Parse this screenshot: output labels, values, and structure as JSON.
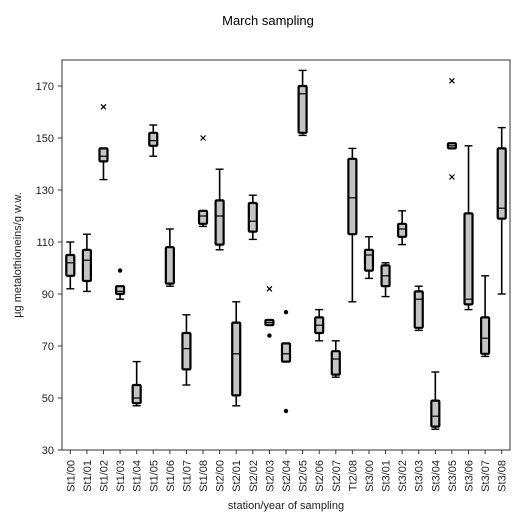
{
  "chart_data": {
    "type": "boxplot",
    "title": "March sampling",
    "xlabel": "station/year of sampling",
    "ylabel": "µg metalothioneins/g w.w.",
    "ylim": [
      30,
      180
    ],
    "yticks": [
      30,
      50,
      70,
      90,
      110,
      130,
      150,
      170
    ],
    "grid": false,
    "categories": [
      "St1/00",
      "St1/01",
      "St1/02",
      "St1/03",
      "St1/04",
      "St1/05",
      "St1/06",
      "St1/07",
      "St1/08",
      "St2/00",
      "St2/01",
      "St2/02",
      "St2/03",
      "St2/04",
      "St2/05",
      "St2/06",
      "St2/07",
      "Tt2/08",
      "St3/00",
      "St3/01",
      "St3/02",
      "St3/03",
      "St3/04",
      "St3/05",
      "St3/06",
      "St3/07",
      "St3/08"
    ],
    "boxes": [
      {
        "min": 92,
        "q1": 97,
        "median": 102,
        "q3": 105,
        "max": 110,
        "outliers": []
      },
      {
        "min": 91,
        "q1": 95,
        "median": 103,
        "q3": 107,
        "max": 113,
        "outliers": []
      },
      {
        "min": 134,
        "q1": 141,
        "median": 143,
        "q3": 146,
        "max": 146,
        "outliers": [
          {
            "value": 162,
            "marker": "x"
          }
        ]
      },
      {
        "min": 88,
        "q1": 90,
        "median": 91,
        "q3": 93,
        "max": 93,
        "outliers": [
          {
            "value": 99,
            "marker": "dot"
          }
        ]
      },
      {
        "min": 47,
        "q1": 48,
        "median": 50,
        "q3": 55,
        "max": 64,
        "outliers": []
      },
      {
        "min": 143,
        "q1": 147,
        "median": 149,
        "q3": 152,
        "max": 155,
        "outliers": []
      },
      {
        "min": 93,
        "q1": 94,
        "median": 94,
        "q3": 108,
        "max": 115,
        "outliers": []
      },
      {
        "min": 55,
        "q1": 61,
        "median": 69,
        "q3": 75,
        "max": 82,
        "outliers": []
      },
      {
        "min": 116,
        "q1": 117,
        "median": 120,
        "q3": 122,
        "max": 122,
        "outliers": [
          {
            "value": 150,
            "marker": "x"
          }
        ]
      },
      {
        "min": 107,
        "q1": 109,
        "median": 120,
        "q3": 126,
        "max": 138,
        "outliers": []
      },
      {
        "min": 47,
        "q1": 51,
        "median": 67,
        "q3": 79,
        "max": 87,
        "outliers": []
      },
      {
        "min": 111,
        "q1": 114,
        "median": 118,
        "q3": 125,
        "max": 128,
        "outliers": []
      },
      {
        "min": 78,
        "q1": 78,
        "median": 79,
        "q3": 80,
        "max": 80,
        "outliers": [
          {
            "value": 92,
            "marker": "x"
          },
          {
            "value": 74,
            "marker": "dot"
          }
        ]
      },
      {
        "min": 64,
        "q1": 64,
        "median": 67,
        "q3": 71,
        "max": 71,
        "outliers": [
          {
            "value": 83,
            "marker": "dot"
          },
          {
            "value": 45,
            "marker": "dot"
          }
        ]
      },
      {
        "min": 151,
        "q1": 152,
        "median": 167,
        "q3": 170,
        "max": 176,
        "outliers": []
      },
      {
        "min": 72,
        "q1": 75,
        "median": 78,
        "q3": 81,
        "max": 84,
        "outliers": []
      },
      {
        "min": 58,
        "q1": 59,
        "median": 65,
        "q3": 68,
        "max": 72,
        "outliers": []
      },
      {
        "min": 87,
        "q1": 113,
        "median": 127,
        "q3": 142,
        "max": 146,
        "outliers": []
      },
      {
        "min": 96,
        "q1": 99,
        "median": 105,
        "q3": 107,
        "max": 112,
        "outliers": []
      },
      {
        "min": 89,
        "q1": 93,
        "median": 97,
        "q3": 101,
        "max": 102,
        "outliers": []
      },
      {
        "min": 109,
        "q1": 112,
        "median": 115,
        "q3": 117,
        "max": 122,
        "outliers": []
      },
      {
        "min": 76,
        "q1": 77,
        "median": 88,
        "q3": 91,
        "max": 93,
        "outliers": []
      },
      {
        "min": 38,
        "q1": 39,
        "median": 43,
        "q3": 49,
        "max": 60,
        "outliers": []
      },
      {
        "min": 146,
        "q1": 146,
        "median": 147,
        "q3": 148,
        "max": 148,
        "outliers": [
          {
            "value": 172,
            "marker": "x"
          },
          {
            "value": 135,
            "marker": "x"
          }
        ]
      },
      {
        "min": 84,
        "q1": 86,
        "median": 88,
        "q3": 121,
        "max": 147,
        "outliers": []
      },
      {
        "min": 66,
        "q1": 67,
        "median": 73,
        "q3": 81,
        "max": 97,
        "outliers": []
      },
      {
        "min": 90,
        "q1": 119,
        "median": 123,
        "q3": 146,
        "max": 154,
        "outliers": []
      }
    ],
    "colors": {
      "box_fill": "#c4c4c4",
      "stroke": "#000000",
      "frame": "#333333"
    }
  }
}
